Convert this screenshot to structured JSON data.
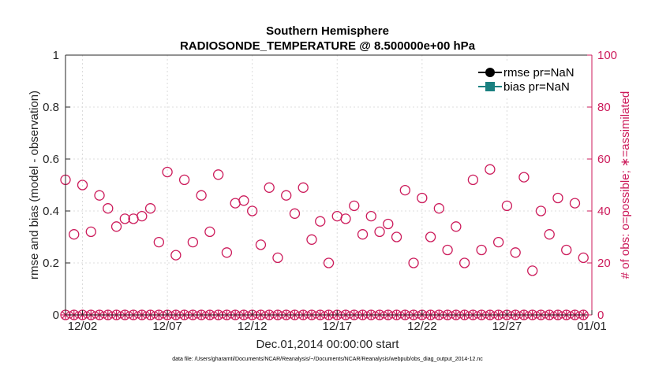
{
  "chart_data": {
    "type": "scatter",
    "title": "Southern Hemisphere",
    "subtitle": "RADIOSONDE_TEMPERATURE @ 8.500000e+00 hPa",
    "xlabel": "Dec.01,2014 00:00:00 start",
    "ylabel": "rmse and bias (model - observation)",
    "ylabel_right": "# of obs: o=possible; ∗=assimilated",
    "footnote": "data file: /Users/gharamti/Documents/NCAR/Reanalysis/~/Documents/NCAR/Reanalysis/webpub/obs_diag_output_2014-12.nc",
    "x_unit": "days since Dec.01,2014",
    "xlim": [
      0.5,
      31.5
    ],
    "ylim": [
      0,
      1
    ],
    "ylim_right": [
      0,
      100
    ],
    "grid": true,
    "legend_position": "top-right",
    "x_ticks": [
      {
        "value": 1.5,
        "label": "12/02"
      },
      {
        "value": 6.5,
        "label": "12/07"
      },
      {
        "value": 11.5,
        "label": "12/12"
      },
      {
        "value": 16.5,
        "label": "12/17"
      },
      {
        "value": 21.5,
        "label": "12/22"
      },
      {
        "value": 26.5,
        "label": "12/27"
      },
      {
        "value": 31.5,
        "label": "01/01"
      }
    ],
    "y_ticks": [
      "0",
      "0.2",
      "0.4",
      "0.6",
      "0.8",
      "1"
    ],
    "y_ticks_right": [
      "0",
      "20",
      "40",
      "60",
      "80",
      "100"
    ],
    "series": [
      {
        "name": "rmse pr=NaN",
        "color": "#000000",
        "marker": "filled-circle",
        "values": []
      },
      {
        "name": "bias pr=NaN",
        "color": "#1a8080",
        "marker": "filled-square",
        "values": []
      }
    ],
    "obs_possible": {
      "color": "#cc1a5a",
      "marker": "open-circle",
      "axis": "right",
      "x": [
        0.5,
        1.0,
        1.5,
        2.0,
        2.5,
        3.0,
        3.5,
        4.0,
        4.5,
        5.0,
        5.5,
        6.0,
        6.5,
        7.0,
        7.5,
        8.0,
        8.5,
        9.0,
        9.5,
        10.0,
        10.5,
        11.0,
        11.5,
        12.0,
        12.5,
        13.0,
        13.5,
        14.0,
        14.5,
        15.0,
        15.5,
        16.0,
        16.5,
        17.0,
        17.5,
        18.0,
        18.5,
        19.0,
        19.5,
        20.0,
        20.5,
        21.0,
        21.5,
        22.0,
        22.5,
        23.0,
        23.5,
        24.0,
        24.5,
        25.0,
        25.5,
        26.0,
        26.5,
        27.0,
        27.5,
        28.0,
        28.5,
        29.0,
        29.5,
        30.0,
        30.5,
        31.0
      ],
      "y": [
        52,
        31,
        50,
        32,
        46,
        41,
        34,
        37,
        37,
        38,
        41,
        28,
        55,
        23,
        52,
        28,
        46,
        32,
        54,
        24,
        43,
        44,
        40,
        27,
        49,
        22,
        46,
        39,
        49,
        29,
        36,
        20,
        38,
        37,
        42,
        31,
        38,
        32,
        35,
        30,
        48,
        20,
        45,
        30,
        41,
        25,
        34,
        20,
        52,
        25,
        56,
        28,
        42,
        24,
        53,
        17,
        40,
        31,
        45,
        25,
        43,
        22
      ]
    },
    "obs_assimilated": {
      "color": "#cc1a5a",
      "marker": "asterisk",
      "axis": "right",
      "y_all": 0
    }
  }
}
